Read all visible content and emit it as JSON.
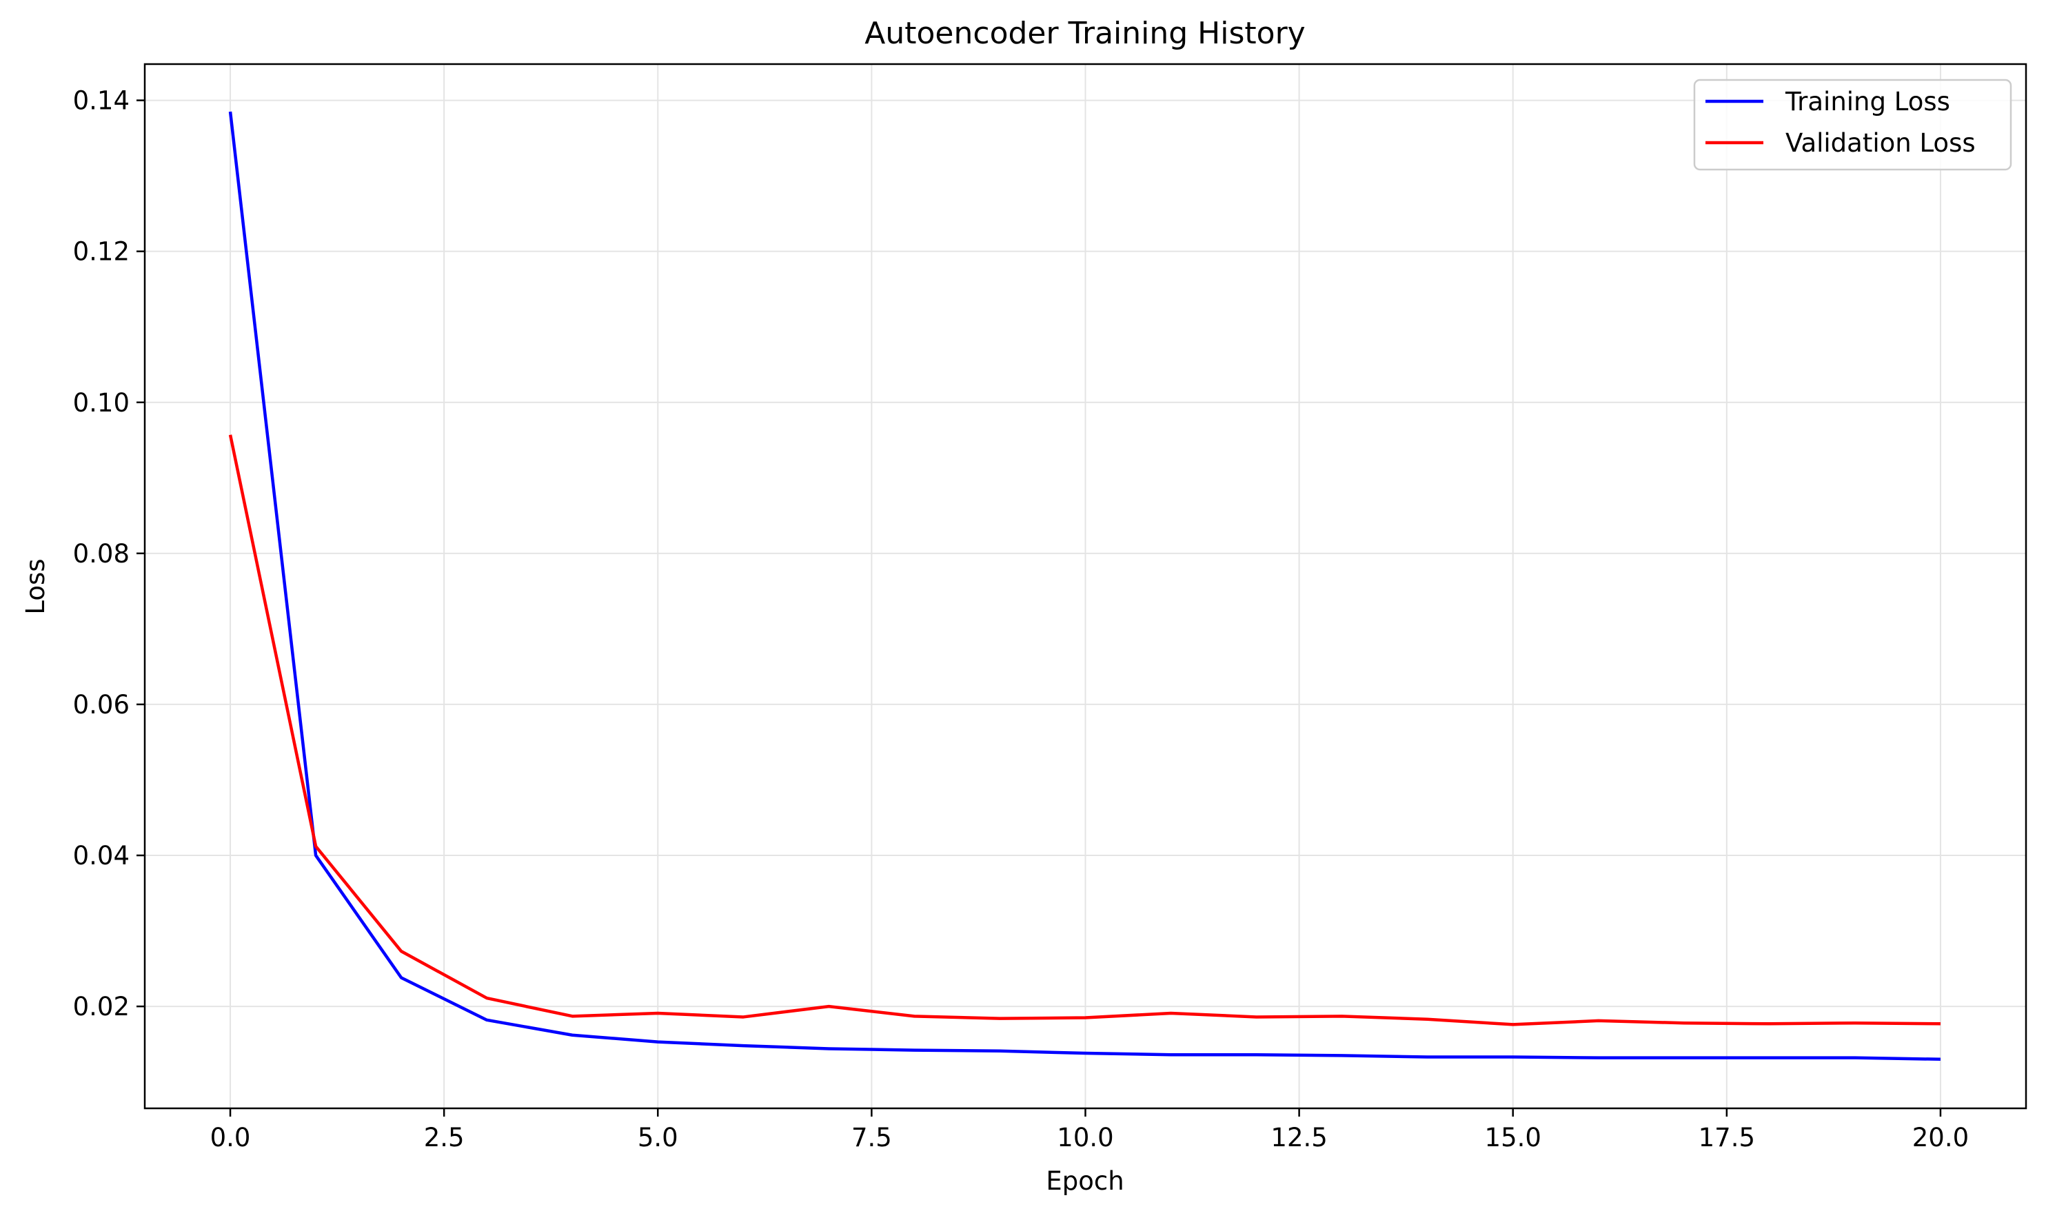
{
  "chart_data": {
    "type": "line",
    "title": "Autoencoder Training History",
    "xlabel": "Epoch",
    "ylabel": "Loss",
    "xlim": [
      -1.0,
      21.0
    ],
    "ylim": [
      0.0065,
      0.1448
    ],
    "xticks": [
      0.0,
      2.5,
      5.0,
      7.5,
      10.0,
      12.5,
      15.0,
      17.5,
      20.0
    ],
    "xtick_labels": [
      "0.0",
      "2.5",
      "5.0",
      "7.5",
      "10.0",
      "12.5",
      "15.0",
      "17.5",
      "20.0"
    ],
    "yticks": [
      0.02,
      0.04,
      0.06,
      0.08,
      0.1,
      0.12,
      0.14
    ],
    "ytick_labels": [
      "0.02",
      "0.04",
      "0.06",
      "0.08",
      "0.10",
      "0.12",
      "0.14"
    ],
    "grid": true,
    "legend_position": "top-right",
    "x": [
      0,
      1,
      2,
      3,
      4,
      5,
      6,
      7,
      8,
      9,
      10,
      11,
      12,
      13,
      14,
      15,
      16,
      17,
      18,
      19,
      20
    ],
    "series": [
      {
        "name": "Training Loss",
        "color": "#0000ff",
        "values": [
          0.1385,
          0.04,
          0.0238,
          0.0182,
          0.0162,
          0.0153,
          0.0148,
          0.0144,
          0.0142,
          0.0141,
          0.0138,
          0.0136,
          0.0136,
          0.0135,
          0.0133,
          0.0133,
          0.0132,
          0.0132,
          0.0132,
          0.0132,
          0.013
        ]
      },
      {
        "name": "Validation Loss",
        "color": "#ff0000",
        "values": [
          0.0957,
          0.0412,
          0.0273,
          0.0211,
          0.0187,
          0.0191,
          0.0186,
          0.02,
          0.0187,
          0.0184,
          0.0185,
          0.0191,
          0.0186,
          0.0187,
          0.0183,
          0.0176,
          0.0181,
          0.0178,
          0.0177,
          0.0178,
          0.0177
        ]
      }
    ]
  }
}
